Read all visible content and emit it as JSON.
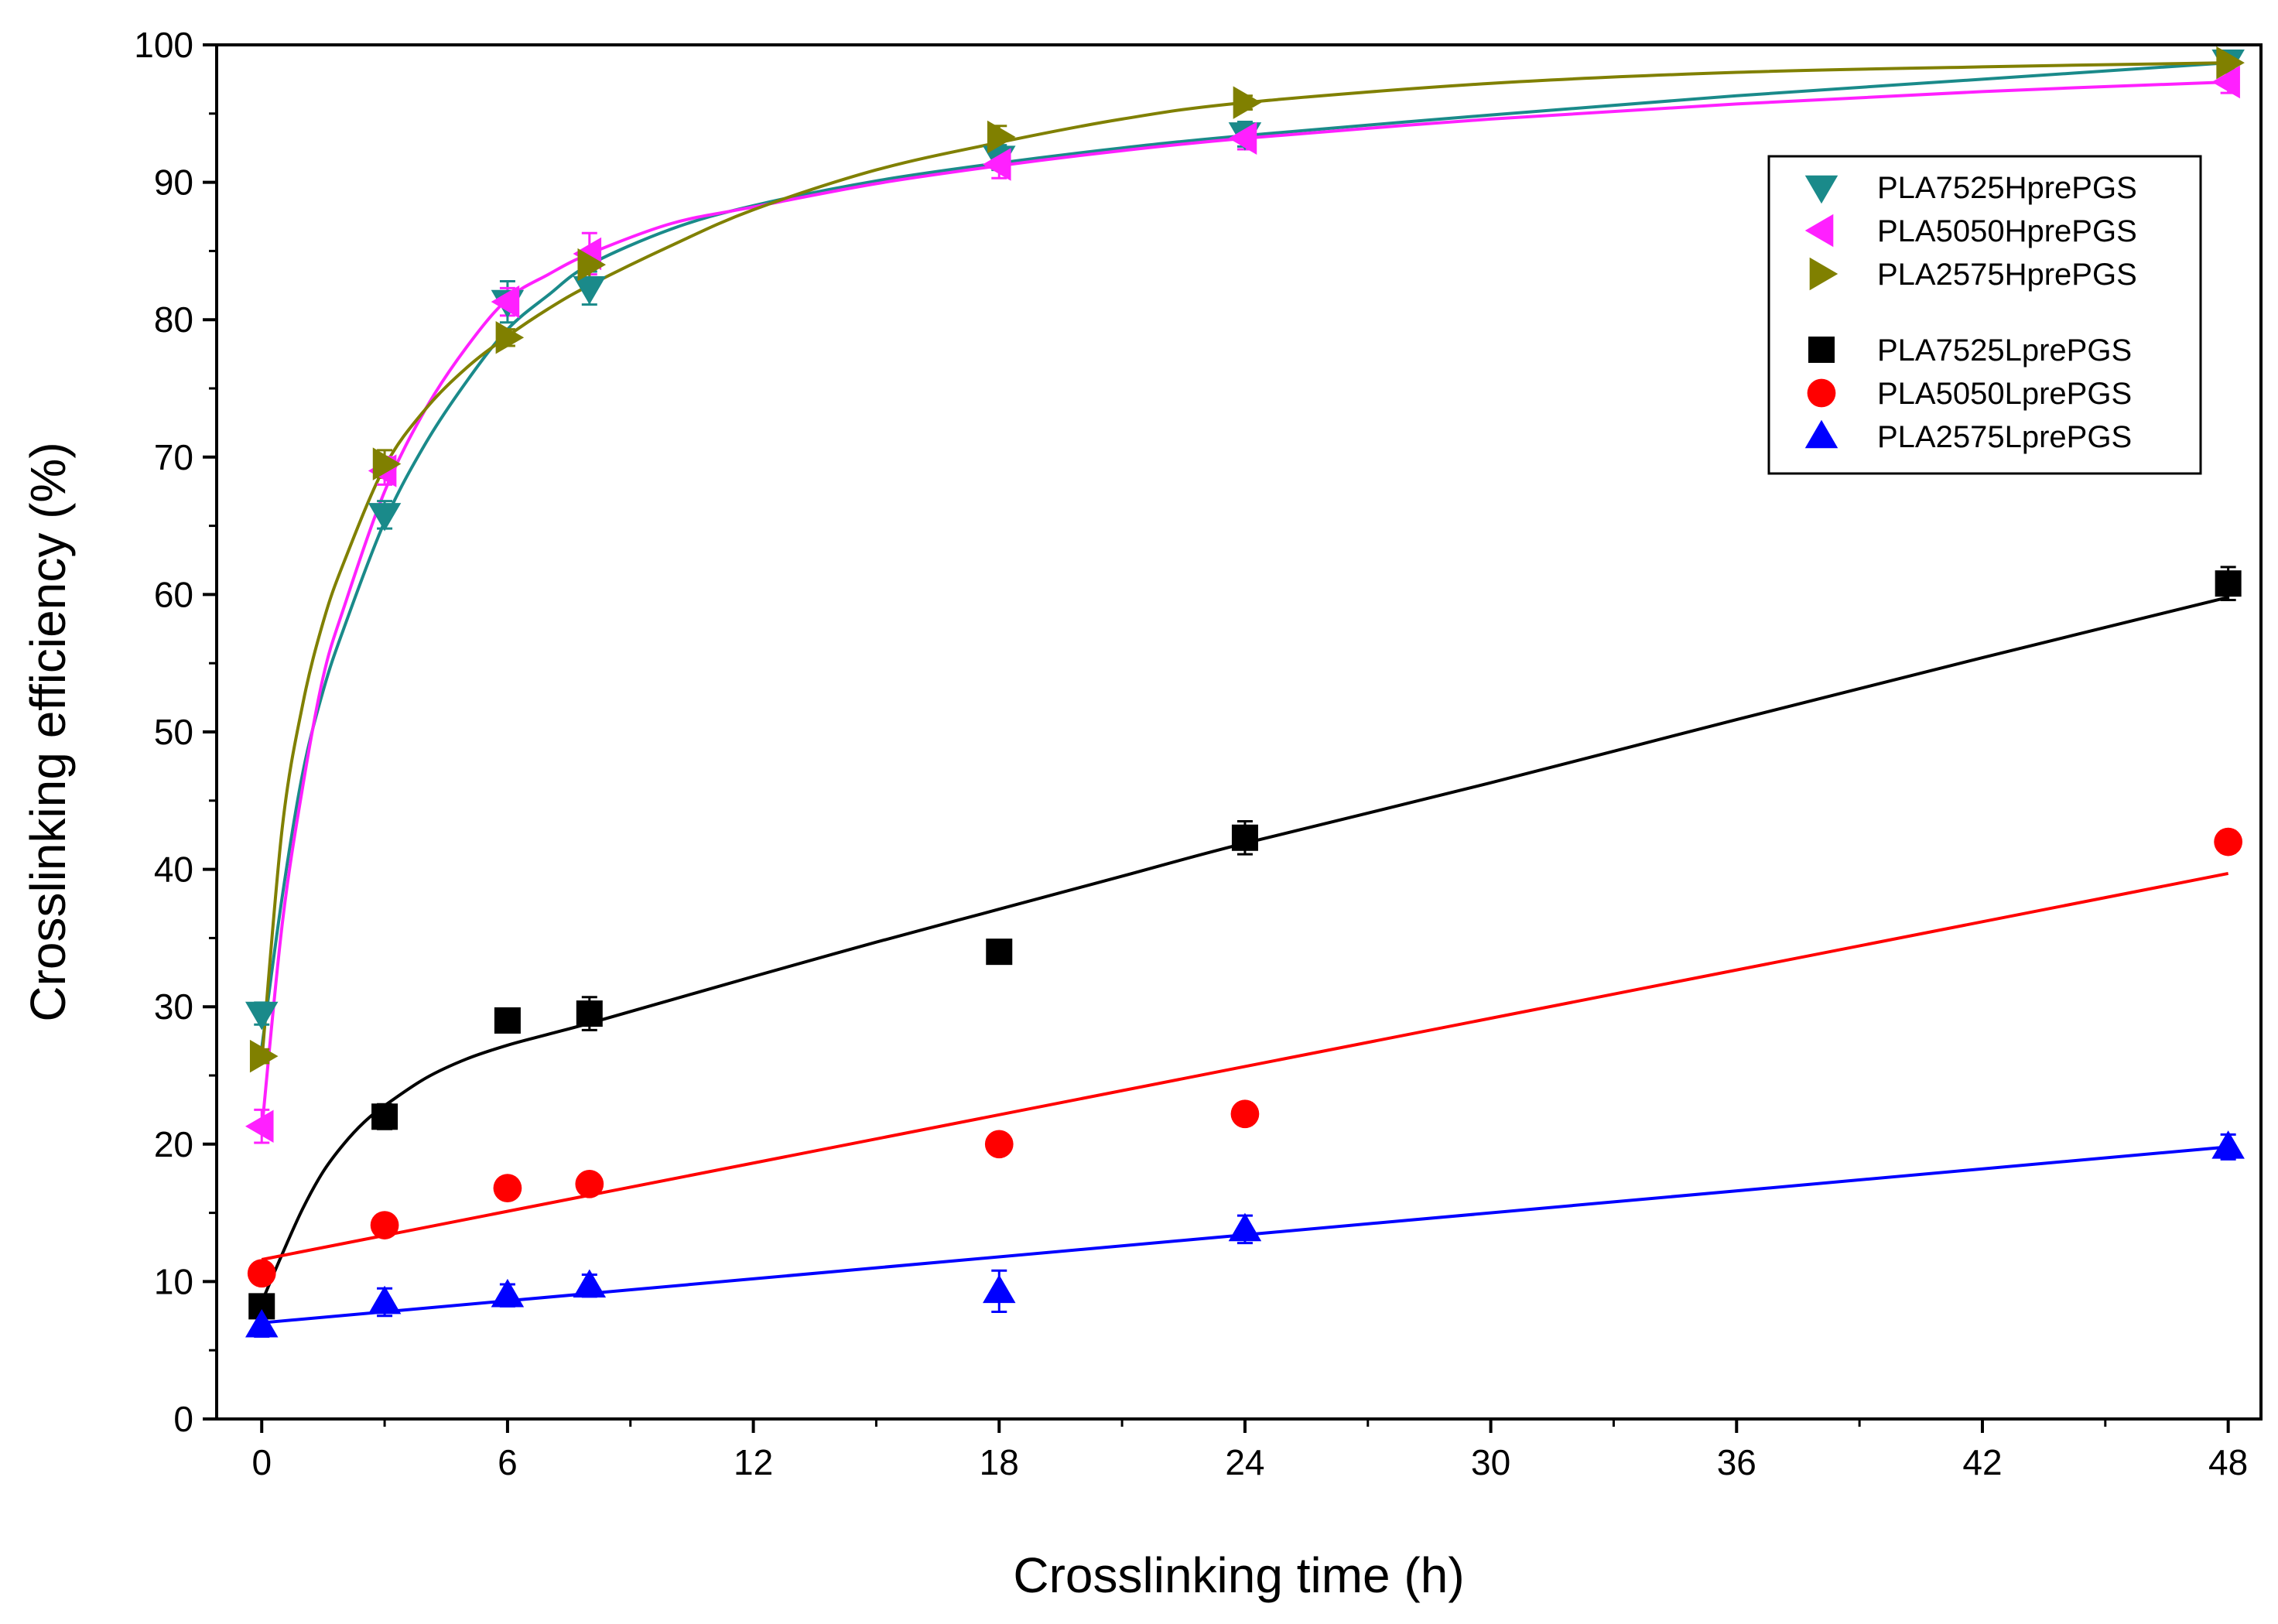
{
  "chart_data": {
    "type": "scatter",
    "title": "",
    "xlabel": "Crosslinking time (h)",
    "ylabel": "Crosslinking efficiency (%)",
    "xlim": [
      -1.1,
      48.8
    ],
    "ylim": [
      0,
      100
    ],
    "xticks": [
      0,
      6,
      12,
      18,
      24,
      30,
      36,
      42,
      48
    ],
    "xtick_labels": [
      "0",
      "6",
      "12",
      "18",
      "24",
      "30",
      "36",
      "42",
      "48"
    ],
    "yticks": [
      0,
      10,
      20,
      30,
      40,
      50,
      60,
      70,
      80,
      90,
      100
    ],
    "ytick_labels": [
      "0",
      "10",
      "20",
      "30",
      "40",
      "50",
      "60",
      "70",
      "80",
      "90",
      "100"
    ],
    "grid": false,
    "legend_position": "upper-right",
    "series": [
      {
        "name": "PLA7525HprePGS",
        "marker": "triangle-down",
        "color": "#1a8a8a",
        "x": [
          0,
          3,
          6,
          8,
          18,
          24,
          48
        ],
        "y": [
          29.5,
          65.8,
          81.3,
          82.3,
          91.8,
          93.5,
          98.8
        ],
        "err": [
          0.8,
          1.0,
          1.5,
          1.2,
          0.9,
          0.9,
          0.6
        ],
        "fit": {
          "x": [
            0,
            0.5,
            1,
            1.5,
            2,
            3,
            4,
            5,
            6,
            7,
            8,
            10,
            12,
            15,
            18,
            21,
            24,
            30,
            36,
            42,
            48
          ],
          "y": [
            27,
            38,
            47,
            53,
            57.5,
            65.3,
            71,
            75.5,
            79.3,
            81.8,
            84,
            86.6,
            88.3,
            90.1,
            91.4,
            92.5,
            93.4,
            94.9,
            96.3,
            97.5,
            98.7
          ]
        }
      },
      {
        "name": "PLA5050HprePGS",
        "marker": "triangle-left",
        "color": "#ff20ff",
        "x": [
          0,
          3,
          6,
          8,
          18,
          24,
          48
        ],
        "y": [
          21.3,
          69.0,
          81.3,
          84.8,
          91.3,
          93.2,
          97.3
        ],
        "err": [
          1.2,
          1.0,
          1.0,
          1.5,
          1.0,
          0.8,
          0.8
        ],
        "fit": {
          "x": [
            0,
            0.5,
            1,
            1.5,
            2,
            3,
            4,
            5,
            6,
            7,
            8,
            10,
            12,
            15,
            18,
            21,
            24,
            30,
            36,
            42,
            48
          ],
          "y": [
            21,
            36,
            46,
            54,
            59,
            67.5,
            73.5,
            78,
            81.5,
            83.3,
            84.8,
            87,
            88.2,
            89.9,
            91.2,
            92.3,
            93.2,
            94.6,
            95.7,
            96.6,
            97.3
          ]
        }
      },
      {
        "name": "PLA2575HprePGS",
        "marker": "triangle-right",
        "color": "#808000",
        "x": [
          0,
          3,
          6,
          8,
          18,
          24,
          48
        ],
        "y": [
          26.4,
          69.5,
          78.7,
          84.0,
          93.3,
          95.8,
          98.7
        ],
        "err": [
          0.5,
          1.0,
          0.6,
          1.0,
          0.8,
          0.5,
          0.5
        ],
        "fit": {
          "x": [
            0,
            0.5,
            1,
            1.5,
            2,
            3,
            4,
            5,
            6,
            7,
            8,
            10,
            12,
            15,
            18,
            21,
            24,
            30,
            36,
            42,
            48
          ],
          "y": [
            26,
            43,
            52,
            58,
            62.3,
            69.3,
            73.5,
            76.5,
            78.8,
            80.8,
            82.5,
            85.4,
            88,
            90.9,
            92.9,
            94.6,
            95.8,
            97.2,
            98,
            98.4,
            98.7
          ]
        }
      },
      {
        "name": "PLA7525LprePGS",
        "marker": "square",
        "color": "#000000",
        "x": [
          0,
          3,
          6,
          8,
          18,
          24,
          48
        ],
        "y": [
          8.2,
          22.0,
          29.0,
          29.5,
          34.0,
          42.3,
          60.8
        ],
        "err": [
          0.5,
          0.9,
          0.4,
          1.2,
          0.4,
          1.2,
          1.2
        ],
        "fit": {
          "x": [
            0,
            0.5,
            1,
            1.5,
            2,
            2.5,
            3,
            4,
            5,
            6,
            7,
            8,
            10,
            12,
            15,
            18,
            21,
            24,
            30,
            36,
            42,
            48
          ],
          "y": [
            8.5,
            12,
            15.3,
            18,
            20,
            21.6,
            22.8,
            24.8,
            26.2,
            27.2,
            28,
            28.8,
            30.5,
            32.2,
            34.7,
            37.1,
            39.5,
            41.9,
            46.3,
            50.9,
            55.4,
            59.8
          ]
        }
      },
      {
        "name": "PLA5050LprePGS",
        "marker": "circle",
        "color": "#ff0000",
        "x": [
          0,
          3,
          6,
          8,
          18,
          24,
          48
        ],
        "y": [
          10.6,
          14.1,
          16.8,
          17.1,
          20.0,
          22.2,
          42.0
        ],
        "err": [
          0.4,
          0.6,
          0.4,
          0.4,
          0.4,
          0.8,
          0.8
        ],
        "fit": {
          "x": [
            0,
            48
          ],
          "y": [
            11.6,
            39.7
          ]
        }
      },
      {
        "name": "PLA2575LprePGS",
        "marker": "triangle-up",
        "color": "#0000ff",
        "x": [
          0,
          3,
          6,
          8,
          18,
          24,
          48
        ],
        "y": [
          6.8,
          8.5,
          9.0,
          9.7,
          9.3,
          13.8,
          19.8
        ],
        "err": [
          0.8,
          1.0,
          0.8,
          0.8,
          1.5,
          1.0,
          0.9
        ],
        "fit": {
          "x": [
            0,
            48
          ],
          "y": [
            7.0,
            19.8
          ]
        }
      }
    ]
  }
}
